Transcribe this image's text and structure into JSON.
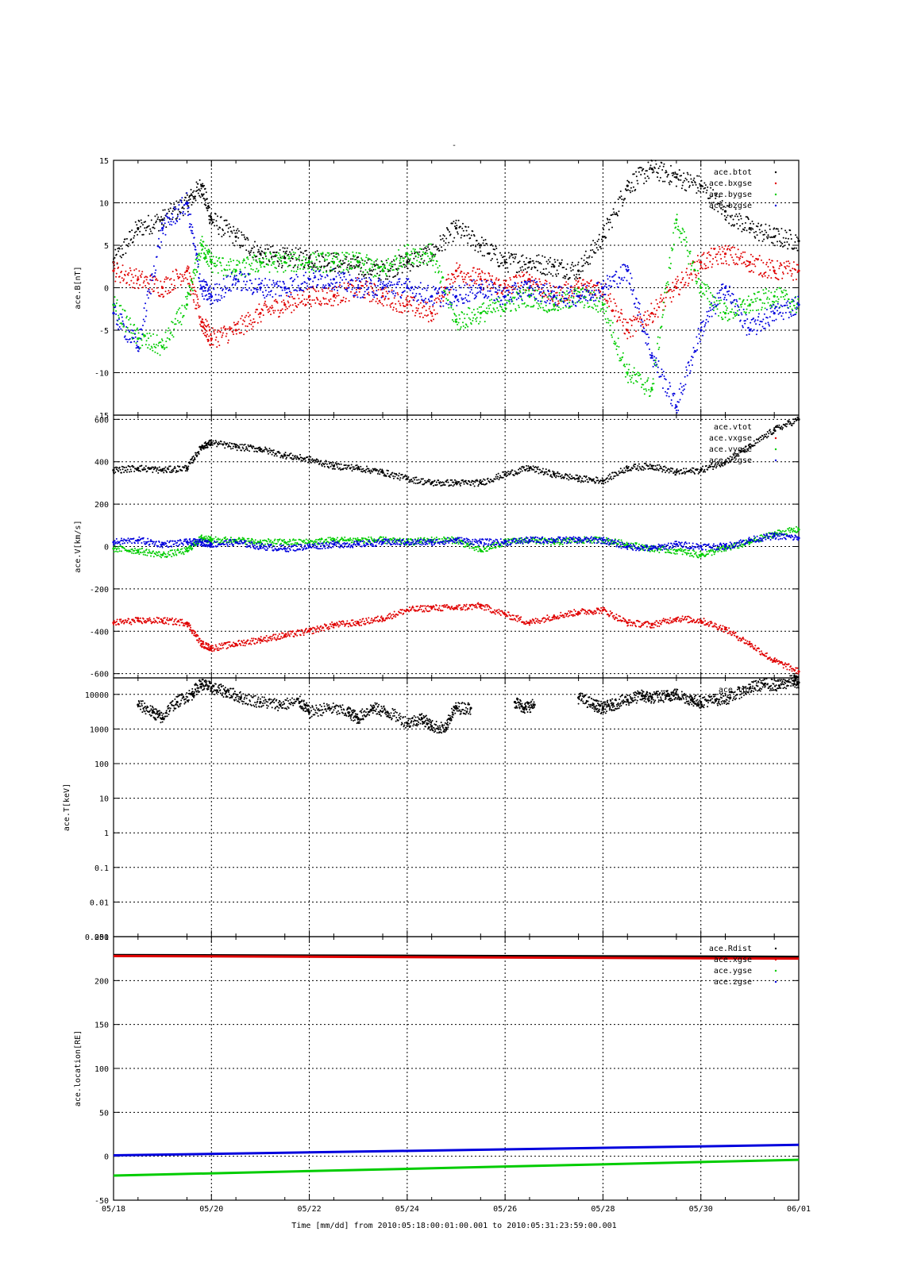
{
  "title": "-",
  "colors": {
    "black": "#000000",
    "red": "#e00000",
    "green": "#00cc00",
    "blue": "#0000dd",
    "grid": "#000000"
  },
  "x_axis": {
    "ticks": [
      "05/18",
      "05/20",
      "05/22",
      "05/24",
      "05/26",
      "05/28",
      "05/30",
      "06/01"
    ],
    "label": "Time [mm/dd]  from 2010:05:18:00:01:00.001  to  2010:05:31:23:59:00.001"
  },
  "chart_data": [
    {
      "type": "scatter",
      "ylabel": "ace.B[nT]",
      "ylim": [
        -15,
        15
      ],
      "yticks": [
        "15",
        "10",
        "5",
        "0",
        "-5",
        "-10",
        "-15"
      ],
      "ytick_values": [
        15,
        10,
        5,
        0,
        -5,
        -10,
        -15
      ],
      "grid": true,
      "legend_position": "top-right",
      "series": [
        {
          "name": "ace.btot",
          "color": "black",
          "x": [
            0,
            0.5,
            1,
            1.5,
            1.8,
            2,
            2.5,
            3,
            3.5,
            4,
            4.5,
            5,
            5.5,
            6,
            6.5,
            7,
            7.5,
            8,
            8.5,
            9,
            9.5,
            10,
            10.5,
            11,
            11.5,
            12,
            12.5,
            13,
            13.5,
            14
          ],
          "values": [
            3,
            7,
            8,
            10,
            12,
            8,
            6,
            4,
            3.5,
            3.5,
            3,
            2.5,
            2,
            3,
            4,
            7,
            5,
            3,
            3,
            2.5,
            2,
            6,
            12,
            14,
            13,
            12,
            9,
            7,
            6,
            5.5
          ]
        },
        {
          "name": "ace.bxgse",
          "color": "red",
          "x": [
            0,
            0.5,
            1,
            1.5,
            1.8,
            2,
            2.5,
            3,
            3.5,
            4,
            4.5,
            5,
            5.5,
            6,
            6.5,
            7,
            7.5,
            8,
            8.5,
            9,
            9.5,
            10,
            10.5,
            11,
            11.5,
            12,
            12.5,
            13,
            13.5,
            14
          ],
          "values": [
            2,
            1,
            0,
            2,
            -4,
            -6,
            -5,
            -3,
            -2,
            -1,
            -1,
            0,
            -1,
            -2,
            -3,
            2,
            1,
            0,
            1,
            -1,
            0,
            0,
            -5,
            -3,
            0,
            3,
            4,
            3,
            2,
            2
          ]
        },
        {
          "name": "ace.bygse",
          "color": "green",
          "x": [
            0,
            0.5,
            1,
            1.5,
            1.8,
            2,
            2.5,
            3,
            3.5,
            4,
            4.5,
            5,
            5.5,
            6,
            6.5,
            7,
            7.5,
            8,
            8.5,
            9,
            9.5,
            10,
            10.5,
            11,
            11.5,
            12,
            12.5,
            13,
            13.5,
            14
          ],
          "values": [
            -2,
            -6,
            -7,
            -2,
            5,
            3,
            2,
            3,
            3,
            3,
            3,
            3,
            2,
            4,
            4,
            -4,
            -3,
            -2,
            -1,
            -2,
            -1,
            -2,
            -10,
            -12,
            8,
            0,
            -3,
            -2,
            -1,
            -2
          ]
        },
        {
          "name": "ace.bzgse",
          "color": "blue",
          "x": [
            0,
            0.5,
            1,
            1.5,
            1.8,
            2,
            2.5,
            3,
            3.5,
            4,
            4.5,
            5,
            5.5,
            6,
            6.5,
            7,
            7.5,
            8,
            8.5,
            9,
            9.5,
            10,
            10.5,
            11,
            11.5,
            12,
            12.5,
            13,
            13.5,
            14
          ],
          "values": [
            -3,
            -7,
            7,
            10,
            0,
            -1,
            1,
            0,
            0,
            1,
            1,
            0,
            0,
            0,
            -1,
            -1,
            0,
            -1,
            0,
            -1,
            -1,
            0,
            2,
            -8,
            -14,
            -5,
            0,
            -5,
            -3,
            -2
          ]
        }
      ]
    },
    {
      "type": "scatter",
      "ylabel": "ace.V[km/s]",
      "ylim": [
        -620,
        620
      ],
      "yticks": [
        "600",
        "400",
        "200",
        "0",
        "-200",
        "-400",
        "-600"
      ],
      "ytick_values": [
        600,
        400,
        200,
        0,
        -200,
        -400,
        -600
      ],
      "grid": true,
      "legend_position": "top-right",
      "series": [
        {
          "name": "ace.vtot",
          "color": "black",
          "x": [
            0,
            0.5,
            1,
            1.5,
            1.8,
            2,
            2.5,
            3,
            3.5,
            4,
            4.5,
            5,
            5.5,
            6,
            6.5,
            7,
            7.5,
            8,
            8.5,
            9,
            9.5,
            10,
            10.5,
            11,
            11.5,
            12,
            12.5,
            13,
            13.5,
            14
          ],
          "values": [
            360,
            370,
            360,
            370,
            470,
            490,
            470,
            460,
            430,
            410,
            380,
            370,
            350,
            320,
            300,
            300,
            300,
            340,
            370,
            340,
            320,
            310,
            370,
            380,
            350,
            360,
            400,
            470,
            550,
            600
          ]
        },
        {
          "name": "ace.vxgse",
          "color": "red",
          "x": [
            0,
            0.5,
            1,
            1.5,
            1.8,
            2,
            2.5,
            3,
            3.5,
            4,
            4.5,
            5,
            5.5,
            6,
            6.5,
            7,
            7.5,
            8,
            8.5,
            9,
            9.5,
            10,
            10.5,
            11,
            11.5,
            12,
            12.5,
            13,
            13.5,
            14
          ],
          "values": [
            -360,
            -350,
            -350,
            -360,
            -460,
            -480,
            -460,
            -440,
            -420,
            -400,
            -370,
            -360,
            -340,
            -300,
            -290,
            -290,
            -280,
            -320,
            -360,
            -330,
            -310,
            -300,
            -360,
            -370,
            -340,
            -350,
            -390,
            -460,
            -540,
            -590
          ]
        },
        {
          "name": "ace.vygse",
          "color": "green",
          "x": [
            0,
            0.5,
            1,
            1.5,
            1.8,
            2,
            2.5,
            3,
            3.5,
            4,
            4.5,
            5,
            5.5,
            6,
            6.5,
            7,
            7.5,
            8,
            8.5,
            9,
            9.5,
            10,
            10.5,
            11,
            11.5,
            12,
            12.5,
            13,
            13.5,
            14
          ],
          "values": [
            -10,
            -20,
            -40,
            -20,
            40,
            30,
            30,
            20,
            20,
            20,
            30,
            30,
            30,
            20,
            30,
            30,
            -20,
            20,
            30,
            20,
            30,
            30,
            10,
            -10,
            -20,
            -40,
            -10,
            20,
            60,
            80
          ]
        },
        {
          "name": "ace.vzgse",
          "color": "blue",
          "x": [
            0,
            0.5,
            1,
            1.5,
            1.8,
            2,
            2.5,
            3,
            3.5,
            4,
            4.5,
            5,
            5.5,
            6,
            6.5,
            7,
            7.5,
            8,
            8.5,
            9,
            9.5,
            10,
            10.5,
            11,
            11.5,
            12,
            12.5,
            13,
            13.5,
            14
          ],
          "values": [
            20,
            30,
            10,
            20,
            20,
            10,
            20,
            0,
            -10,
            0,
            10,
            10,
            20,
            20,
            20,
            30,
            20,
            20,
            30,
            30,
            30,
            30,
            0,
            -10,
            10,
            0,
            0,
            30,
            50,
            40
          ]
        }
      ]
    },
    {
      "type": "scatter",
      "ylabel": "ace.T[keV]",
      "ylim": [
        0.001,
        30000
      ],
      "log_scale": true,
      "yticks": [
        "10000",
        "1000",
        "100",
        "10",
        "1",
        "0.1",
        "0.01",
        "0.001"
      ],
      "ytick_values": [
        10000,
        1000,
        100,
        10,
        1,
        0.1,
        0.01,
        0.001
      ],
      "grid": true,
      "legend_position": "top-right",
      "series": [
        {
          "name": "ace.tpr",
          "color": "black",
          "x": [
            0.5,
            0.8,
            1,
            1.3,
            1.6,
            1.8,
            2,
            2.3,
            2.6,
            3,
            3.4,
            3.8,
            4,
            4.4,
            4.8,
            5,
            5.3,
            5.6,
            6,
            6.3,
            6.5,
            6.8,
            7,
            7.3,
            8.2,
            8.4,
            8.6,
            9.5,
            9.8,
            10,
            10.2,
            10.5,
            10.8,
            11,
            11.3,
            11.5,
            11.8,
            12,
            12.3,
            12.6,
            13,
            13.3,
            13.6,
            13.9,
            14
          ],
          "values": [
            5000,
            3000,
            2000,
            6000,
            10000,
            20000,
            15000,
            12000,
            8000,
            6000,
            5000,
            6000,
            3000,
            4000,
            3000,
            2000,
            4000,
            3000,
            1500,
            2000,
            1200,
            1000,
            4000,
            4000,
            6000,
            4000,
            5000,
            8000,
            5000,
            4000,
            5000,
            7000,
            9000,
            8000,
            9000,
            10000,
            7000,
            6000,
            7000,
            8000,
            15000,
            20000,
            18000,
            25000,
            22000
          ]
        }
      ]
    },
    {
      "type": "line",
      "ylabel": "ace.location[RE]",
      "ylim": [
        -50,
        250
      ],
      "yticks": [
        "250",
        "200",
        "150",
        "100",
        "50",
        "0",
        "-50"
      ],
      "ytick_values": [
        250,
        200,
        150,
        100,
        50,
        0,
        -50
      ],
      "grid": true,
      "legend_position": "top-right",
      "series": [
        {
          "name": "ace.Rdist",
          "color": "black",
          "x": [
            0,
            14
          ],
          "values": [
            229,
            227
          ]
        },
        {
          "name": "ace.xgse",
          "color": "red",
          "x": [
            0,
            14
          ],
          "values": [
            228,
            225
          ]
        },
        {
          "name": "ace.ygse",
          "color": "green",
          "x": [
            0,
            14
          ],
          "values": [
            -22,
            -4
          ]
        },
        {
          "name": "ace.zgse",
          "color": "blue",
          "x": [
            0,
            14
          ],
          "values": [
            1,
            13
          ]
        }
      ]
    }
  ]
}
